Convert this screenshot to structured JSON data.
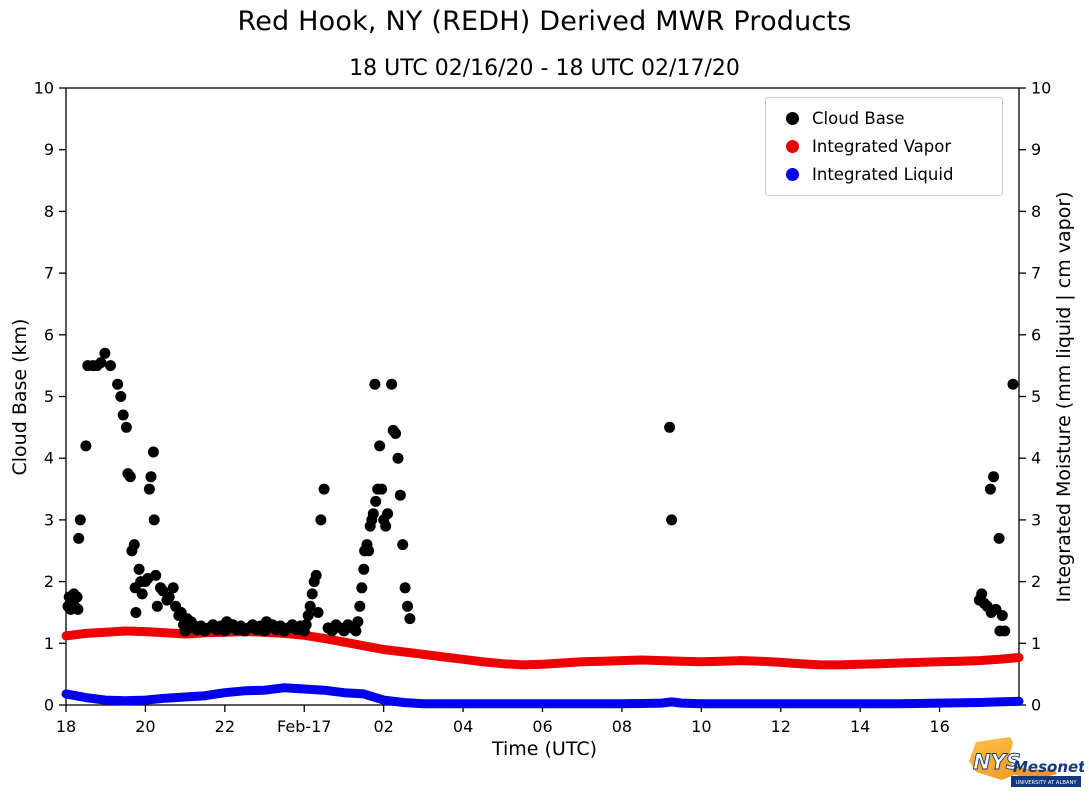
{
  "title": "Red Hook, NY (REDH) Derived MWR Products",
  "subtitle": "18 UTC 02/16/20 - 18 UTC 02/17/20",
  "chart_data": {
    "type": "scatter",
    "title": "Red Hook, NY (REDH) Derived MWR Products",
    "subtitle": "18 UTC 02/16/20 - 18 UTC 02/17/20",
    "xlabel": "Time (UTC)",
    "ylabel_left": "Cloud Base (km)",
    "ylabel_right": "Integrated Moisture (mm liquid | cm vapor)",
    "x_units": "hours since 18 UTC 02/16/20",
    "xlim": [
      0,
      24
    ],
    "ylim": [
      0,
      10
    ],
    "grid": false,
    "legend_position": "upper right",
    "yticks": [
      0,
      1,
      2,
      3,
      4,
      5,
      6,
      7,
      8,
      9,
      10
    ],
    "xticks": [
      {
        "t": 0,
        "label": "18"
      },
      {
        "t": 2,
        "label": "20"
      },
      {
        "t": 4,
        "label": "22"
      },
      {
        "t": 6,
        "label": "Feb-17"
      },
      {
        "t": 8,
        "label": "02"
      },
      {
        "t": 10,
        "label": "04"
      },
      {
        "t": 12,
        "label": "06"
      },
      {
        "t": 14,
        "label": "08"
      },
      {
        "t": 16,
        "label": "10"
      },
      {
        "t": 18,
        "label": "12"
      },
      {
        "t": 20,
        "label": "14"
      },
      {
        "t": 22,
        "label": "16"
      }
    ],
    "series": [
      {
        "name": "Cloud Base",
        "id": "cloud-base",
        "style": "scatter",
        "color": "#000000",
        "points": [
          [
            0.05,
            1.6
          ],
          [
            0.08,
            1.75
          ],
          [
            0.12,
            1.55
          ],
          [
            0.15,
            1.7
          ],
          [
            0.2,
            1.8
          ],
          [
            0.22,
            1.6
          ],
          [
            0.28,
            1.75
          ],
          [
            0.3,
            1.55
          ],
          [
            0.32,
            2.7
          ],
          [
            0.36,
            3.0
          ],
          [
            0.5,
            4.2
          ],
          [
            0.55,
            5.5
          ],
          [
            0.68,
            5.5
          ],
          [
            0.78,
            5.5
          ],
          [
            0.88,
            5.55
          ],
          [
            0.98,
            5.7
          ],
          [
            1.12,
            5.5
          ],
          [
            1.3,
            5.2
          ],
          [
            1.38,
            5.0
          ],
          [
            1.44,
            4.7
          ],
          [
            1.52,
            4.5
          ],
          [
            1.56,
            3.75
          ],
          [
            1.62,
            3.7
          ],
          [
            1.66,
            2.5
          ],
          [
            1.72,
            2.6
          ],
          [
            1.74,
            1.9
          ],
          [
            1.76,
            1.5
          ],
          [
            1.84,
            2.2
          ],
          [
            1.88,
            2.0
          ],
          [
            1.92,
            1.8
          ],
          [
            2.0,
            2.0
          ],
          [
            2.06,
            2.05
          ],
          [
            2.1,
            3.5
          ],
          [
            2.14,
            3.7
          ],
          [
            2.2,
            4.1
          ],
          [
            2.22,
            3.0
          ],
          [
            2.26,
            2.1
          ],
          [
            2.3,
            1.6
          ],
          [
            2.38,
            1.9
          ],
          [
            2.44,
            1.85
          ],
          [
            2.54,
            1.7
          ],
          [
            2.6,
            1.75
          ],
          [
            2.7,
            1.9
          ],
          [
            2.76,
            1.6
          ],
          [
            2.84,
            1.45
          ],
          [
            2.9,
            1.5
          ],
          [
            2.96,
            1.3
          ],
          [
            3,
            1.2
          ],
          [
            3.05,
            1.4
          ],
          [
            3.1,
            1.25
          ],
          [
            3.15,
            1.35
          ],
          [
            3.2,
            1.3
          ],
          [
            3.3,
            1.22
          ],
          [
            3.4,
            1.28
          ],
          [
            3.5,
            1.2
          ],
          [
            3.6,
            1.25
          ],
          [
            3.7,
            1.3
          ],
          [
            3.8,
            1.22
          ],
          [
            3.9,
            1.28
          ],
          [
            4,
            1.2
          ],
          [
            4.05,
            1.35
          ],
          [
            4.1,
            1.25
          ],
          [
            4.2,
            1.3
          ],
          [
            4.3,
            1.22
          ],
          [
            4.4,
            1.28
          ],
          [
            4.5,
            1.2
          ],
          [
            4.6,
            1.25
          ],
          [
            4.7,
            1.3
          ],
          [
            4.8,
            1.22
          ],
          [
            4.9,
            1.28
          ],
          [
            5,
            1.2
          ],
          [
            5.05,
            1.35
          ],
          [
            5.1,
            1.25
          ],
          [
            5.2,
            1.3
          ],
          [
            5.3,
            1.22
          ],
          [
            5.4,
            1.28
          ],
          [
            5.5,
            1.2
          ],
          [
            5.6,
            1.25
          ],
          [
            5.7,
            1.3
          ],
          [
            5.8,
            1.22
          ],
          [
            5.9,
            1.28
          ],
          [
            6,
            1.2
          ],
          [
            6.05,
            1.3
          ],
          [
            6.1,
            1.45
          ],
          [
            6.15,
            1.6
          ],
          [
            6.2,
            1.8
          ],
          [
            6.25,
            2.0
          ],
          [
            6.3,
            2.1
          ],
          [
            6.35,
            1.5
          ],
          [
            6.42,
            3.0
          ],
          [
            6.5,
            3.5
          ],
          [
            6.6,
            1.25
          ],
          [
            6.7,
            1.2
          ],
          [
            6.8,
            1.3
          ],
          [
            6.9,
            1.25
          ],
          [
            7,
            1.2
          ],
          [
            7.1,
            1.3
          ],
          [
            7.2,
            1.25
          ],
          [
            7.3,
            1.2
          ],
          [
            7.35,
            1.35
          ],
          [
            7.4,
            1.6
          ],
          [
            7.45,
            1.9
          ],
          [
            7.5,
            2.2
          ],
          [
            7.52,
            2.5
          ],
          [
            7.58,
            2.6
          ],
          [
            7.62,
            2.5
          ],
          [
            7.66,
            2.9
          ],
          [
            7.7,
            3.0
          ],
          [
            7.74,
            3.1
          ],
          [
            7.78,
            5.2
          ],
          [
            7.8,
            3.3
          ],
          [
            7.85,
            3.5
          ],
          [
            7.9,
            4.2
          ],
          [
            7.95,
            3.5
          ],
          [
            8.0,
            3.0
          ],
          [
            8.05,
            2.9
          ],
          [
            8.1,
            3.1
          ],
          [
            8.2,
            5.2
          ],
          [
            8.24,
            4.45
          ],
          [
            8.3,
            4.4
          ],
          [
            8.36,
            4.0
          ],
          [
            8.42,
            3.4
          ],
          [
            8.48,
            2.6
          ],
          [
            8.54,
            1.9
          ],
          [
            8.6,
            1.6
          ],
          [
            8.66,
            1.4
          ],
          [
            15.2,
            4.5
          ],
          [
            15.25,
            3.0
          ],
          [
            23.0,
            1.7
          ],
          [
            23.06,
            1.8
          ],
          [
            23.12,
            1.65
          ],
          [
            23.2,
            1.6
          ],
          [
            23.28,
            3.5
          ],
          [
            23.3,
            1.5
          ],
          [
            23.36,
            3.7
          ],
          [
            23.42,
            1.55
          ],
          [
            23.5,
            2.7
          ],
          [
            23.52,
            1.2
          ],
          [
            23.58,
            1.45
          ],
          [
            23.64,
            1.2
          ],
          [
            23.85,
            5.2
          ]
        ]
      },
      {
        "name": "Integrated Vapor",
        "id": "integrated-vapor",
        "style": "line",
        "color": "#ee0000",
        "points": [
          [
            0,
            1.12
          ],
          [
            0.5,
            1.16
          ],
          [
            1,
            1.18
          ],
          [
            1.5,
            1.2
          ],
          [
            2,
            1.19
          ],
          [
            2.5,
            1.17
          ],
          [
            3,
            1.15
          ],
          [
            3.5,
            1.17
          ],
          [
            4,
            1.18
          ],
          [
            4.5,
            1.19
          ],
          [
            5,
            1.18
          ],
          [
            5.5,
            1.16
          ],
          [
            6,
            1.13
          ],
          [
            6.5,
            1.08
          ],
          [
            7,
            1.02
          ],
          [
            7.5,
            0.96
          ],
          [
            8,
            0.9
          ],
          [
            8.5,
            0.86
          ],
          [
            9,
            0.82
          ],
          [
            9.5,
            0.78
          ],
          [
            10,
            0.74
          ],
          [
            10.5,
            0.7
          ],
          [
            11,
            0.67
          ],
          [
            11.5,
            0.65
          ],
          [
            12,
            0.66
          ],
          [
            12.5,
            0.68
          ],
          [
            13,
            0.7
          ],
          [
            13.5,
            0.71
          ],
          [
            14,
            0.72
          ],
          [
            14.5,
            0.73
          ],
          [
            15,
            0.72
          ],
          [
            15.5,
            0.71
          ],
          [
            16,
            0.7
          ],
          [
            16.5,
            0.71
          ],
          [
            17,
            0.72
          ],
          [
            17.5,
            0.71
          ],
          [
            18,
            0.69
          ],
          [
            18.5,
            0.67
          ],
          [
            19,
            0.65
          ],
          [
            19.5,
            0.65
          ],
          [
            20,
            0.66
          ],
          [
            20.5,
            0.67
          ],
          [
            21,
            0.68
          ],
          [
            21.5,
            0.69
          ],
          [
            22,
            0.7
          ],
          [
            22.5,
            0.71
          ],
          [
            23,
            0.72
          ],
          [
            23.5,
            0.74
          ],
          [
            24,
            0.77
          ]
        ]
      },
      {
        "name": "Integrated Liquid",
        "id": "integrated-liquid",
        "style": "line",
        "color": "#0000ee",
        "points": [
          [
            0,
            0.18
          ],
          [
            0.5,
            0.12
          ],
          [
            1,
            0.08
          ],
          [
            1.5,
            0.07
          ],
          [
            2,
            0.08
          ],
          [
            2.5,
            0.11
          ],
          [
            3,
            0.13
          ],
          [
            3.5,
            0.15
          ],
          [
            4,
            0.2
          ],
          [
            4.5,
            0.23
          ],
          [
            5,
            0.24
          ],
          [
            5.5,
            0.28
          ],
          [
            6,
            0.26
          ],
          [
            6.5,
            0.24
          ],
          [
            7,
            0.2
          ],
          [
            7.5,
            0.18
          ],
          [
            8,
            0.08
          ],
          [
            8.5,
            0.04
          ],
          [
            9,
            0.02
          ],
          [
            10,
            0.02
          ],
          [
            11,
            0.02
          ],
          [
            12,
            0.02
          ],
          [
            13,
            0.02
          ],
          [
            14,
            0.02
          ],
          [
            15,
            0.03
          ],
          [
            15.25,
            0.05
          ],
          [
            15.5,
            0.03
          ],
          [
            16,
            0.02
          ],
          [
            17,
            0.02
          ],
          [
            18,
            0.02
          ],
          [
            19,
            0.02
          ],
          [
            20,
            0.02
          ],
          [
            21,
            0.02
          ],
          [
            22,
            0.03
          ],
          [
            23,
            0.04
          ],
          [
            23.5,
            0.05
          ],
          [
            24,
            0.06
          ]
        ]
      }
    ]
  },
  "logo": {
    "nys": "NYS",
    "mesonet": "Mesonet",
    "subtext": "UNIVERSITY AT ALBANY"
  }
}
